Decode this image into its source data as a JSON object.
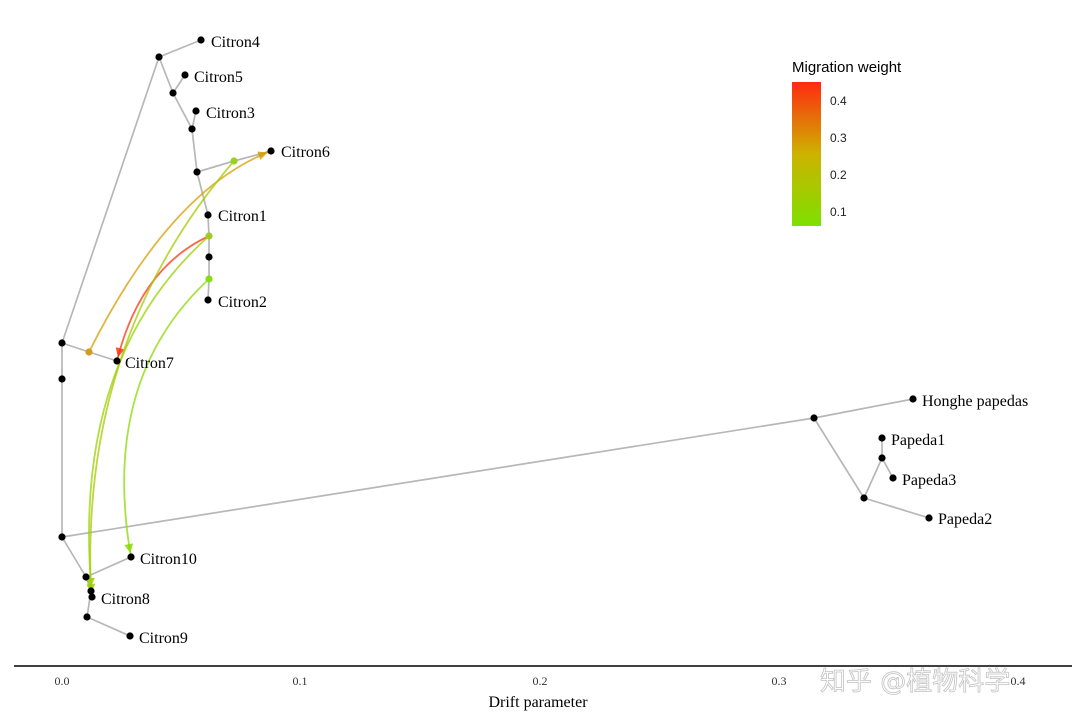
{
  "diagram": {
    "x_axis": {
      "title": "Drift parameter",
      "ticks": [
        {
          "value": 0.0,
          "label": "0.0"
        },
        {
          "value": 0.1,
          "label": "0.1"
        },
        {
          "value": 0.2,
          "label": "0.2"
        },
        {
          "value": 0.3,
          "label": "0.3"
        },
        {
          "value": 0.4,
          "label": "0.4"
        }
      ]
    },
    "legend": {
      "title": "Migration weight",
      "ticks": [
        {
          "value": 0.4,
          "label": "0.4"
        },
        {
          "value": 0.3,
          "label": "0.3"
        },
        {
          "value": 0.2,
          "label": "0.2"
        },
        {
          "value": 0.1,
          "label": "0.1"
        }
      ],
      "colors": {
        "low": "#7ee000",
        "mid": "#cdb300",
        "high": "#ff2a10"
      }
    },
    "tree_color": "#b7b7b7",
    "watermark": "知乎 @植物科学",
    "leaves": [
      {
        "id": "citron4",
        "label": "Citron4"
      },
      {
        "id": "citron5",
        "label": "Citron5"
      },
      {
        "id": "citron3",
        "label": "Citron3"
      },
      {
        "id": "citron6",
        "label": "Citron6"
      },
      {
        "id": "citron1",
        "label": "Citron1"
      },
      {
        "id": "citron2",
        "label": "Citron2"
      },
      {
        "id": "citron7",
        "label": "Citron7"
      },
      {
        "id": "honghe",
        "label": "Honghe papedas"
      },
      {
        "id": "papeda1",
        "label": "Papeda1"
      },
      {
        "id": "papeda3",
        "label": "Papeda3"
      },
      {
        "id": "papeda2",
        "label": "Papeda2"
      },
      {
        "id": "citron10",
        "label": "Citron10"
      },
      {
        "id": "citron8",
        "label": "Citron8"
      },
      {
        "id": "citron9",
        "label": "Citron9"
      }
    ],
    "migration_edges": [
      {
        "from": "n_c1a",
        "to": "citron7",
        "weight": 0.44
      },
      {
        "from": "n_c7a",
        "to": "citron6",
        "weight": 0.28
      },
      {
        "from": "n_c6a",
        "to": "n_c8a",
        "weight": 0.15
      },
      {
        "from": "n_c1a",
        "to": "citron8",
        "weight": 0.12
      },
      {
        "from": "n_c2a",
        "to": "citron10",
        "weight": 0.08
      }
    ]
  }
}
